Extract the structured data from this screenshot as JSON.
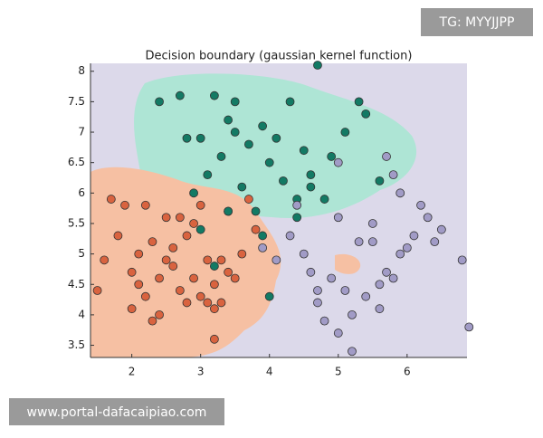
{
  "chart_data": {
    "type": "scatter",
    "title": "Decision boundary (gaussian kernel function)",
    "xlim": [
      1.4,
      6.87
    ],
    "ylim": [
      3.3,
      8.13
    ],
    "xticks": [
      2,
      3,
      4,
      5,
      6
    ],
    "yticks": [
      3.5,
      4,
      4.5,
      5,
      5.5,
      6,
      6.5,
      7,
      7.5,
      8
    ],
    "series": [
      {
        "color": "#d9633f",
        "x": [
          1.5,
          1.6,
          1.8,
          2.0,
          2.1,
          2.2,
          2.3,
          2.4,
          2.5,
          2.6,
          2.7,
          2.8,
          2.9,
          3.0,
          3.1,
          3.2,
          3.3,
          3.4,
          3.5,
          1.9,
          2.2,
          2.5,
          2.7,
          2.9,
          3.1,
          3.3,
          3.6,
          3.8,
          2.0,
          2.4,
          2.8,
          3.2,
          1.7,
          2.6,
          3.0,
          3.4,
          2.3,
          3.2,
          2.1,
          3.7
        ],
        "y": [
          4.4,
          4.9,
          5.3,
          4.7,
          5.0,
          4.3,
          5.2,
          4.6,
          4.9,
          5.1,
          4.4,
          5.3,
          4.6,
          4.3,
          4.9,
          4.5,
          4.9,
          4.7,
          4.6,
          5.8,
          5.8,
          5.6,
          5.6,
          5.5,
          4.2,
          4.2,
          5.0,
          5.4,
          4.1,
          4.0,
          4.2,
          4.1,
          5.9,
          4.8,
          5.8,
          5.7,
          3.9,
          3.6,
          4.5,
          5.9
        ]
      },
      {
        "color": "#137a64",
        "x": [
          2.4,
          2.7,
          3.0,
          3.2,
          3.4,
          3.5,
          3.7,
          3.9,
          4.1,
          4.3,
          4.5,
          4.7,
          4.9,
          5.1,
          5.4,
          5.6,
          2.9,
          3.1,
          3.3,
          3.6,
          3.8,
          4.0,
          4.2,
          4.4,
          4.6,
          4.8,
          3.0,
          3.4,
          3.9,
          4.4,
          4.6,
          3.5,
          2.8,
          5.3,
          4.0,
          3.2
        ],
        "y": [
          7.5,
          7.6,
          6.9,
          7.6,
          7.2,
          7.5,
          6.8,
          7.1,
          6.9,
          7.5,
          6.7,
          8.1,
          6.6,
          7.0,
          7.3,
          6.2,
          6.0,
          6.3,
          6.6,
          6.1,
          5.7,
          6.5,
          6.2,
          5.9,
          6.3,
          5.9,
          5.4,
          5.7,
          5.3,
          5.6,
          6.1,
          7.0,
          6.9,
          7.5,
          4.3,
          4.8
        ]
      },
      {
        "color": "#a19bc6",
        "x": [
          3.9,
          4.1,
          4.3,
          4.5,
          4.7,
          4.9,
          5.1,
          5.3,
          5.5,
          5.7,
          5.9,
          6.1,
          6.3,
          6.5,
          6.8,
          6.9,
          4.8,
          5.0,
          5.2,
          5.4,
          5.6,
          5.8,
          6.0,
          6.2,
          4.6,
          5.0,
          5.5,
          5.7,
          5.9,
          6.4,
          4.4,
          4.7,
          5.2,
          5.6,
          5.0,
          5.8
        ],
        "y": [
          5.1,
          4.9,
          5.3,
          5.0,
          4.2,
          4.6,
          4.4,
          5.2,
          5.5,
          4.7,
          5.0,
          5.3,
          5.6,
          5.4,
          4.9,
          3.8,
          3.9,
          3.7,
          4.0,
          4.3,
          4.5,
          4.6,
          5.1,
          5.8,
          4.7,
          5.6,
          5.2,
          6.6,
          6.0,
          5.2,
          5.8,
          4.4,
          3.4,
          4.1,
          6.5,
          6.3
        ]
      }
    ]
  },
  "watermarks": {
    "top": "TG: MYYJJPP",
    "bottom": "www.portal-dafacaipiao.com"
  }
}
